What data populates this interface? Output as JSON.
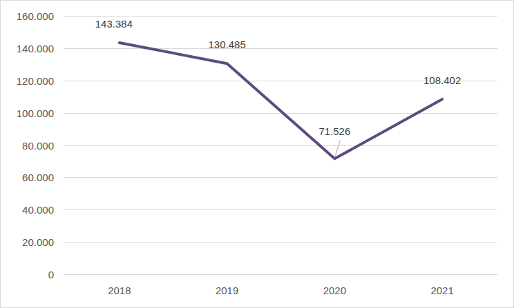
{
  "chart_data": {
    "type": "line",
    "categories": [
      "2018",
      "2019",
      "2020",
      "2021"
    ],
    "values": [
      143384,
      130485,
      71526,
      108402
    ],
    "value_labels": [
      "143.384",
      "130.485",
      "71.526",
      "108.402"
    ],
    "color": "#5f4b7f",
    "ylim": [
      0,
      160000
    ],
    "yticks": [
      0,
      {
        "value": 20000,
        "label": "20.000"
      },
      {
        "value": 40000,
        "label": "40.000"
      },
      {
        "value": 60000,
        "label": "60.000"
      },
      {
        "value": 80000,
        "label": "80.000"
      },
      {
        "value": 100000,
        "label": "100.000"
      },
      {
        "value": 120000,
        "label": "120.000"
      },
      {
        "value": 140000,
        "label": "140.000"
      },
      {
        "value": 160000,
        "label": "160.000"
      }
    ],
    "grid": true,
    "data_labels": true
  }
}
